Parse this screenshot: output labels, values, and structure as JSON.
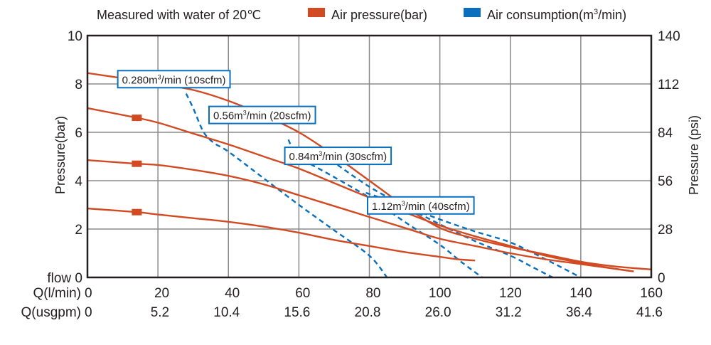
{
  "chart_data": {
    "type": "line",
    "title": "Measured with water of 20℃",
    "ylabel_left": "Pressure(bar)",
    "ylabel_right": "Pressure (psi)",
    "xlabel_rows": [
      {
        "label": "Q(l/min)",
        "ticks": [
          "0",
          "20",
          "40",
          "60",
          "80",
          "100",
          "120",
          "140",
          "160"
        ]
      },
      {
        "label": "Q(usgpm)",
        "ticks": [
          "0",
          "5.2",
          "10.4",
          "15.6",
          "20.8",
          "26.0",
          "31.2",
          "36.4",
          "41.6"
        ]
      }
    ],
    "xlim": [
      0,
      160
    ],
    "ylim": [
      0,
      10
    ],
    "y_left_ticks": [
      "flow 0",
      "2",
      "4",
      "6",
      "8",
      "10"
    ],
    "y_left_values": [
      0,
      2,
      4,
      6,
      8,
      10
    ],
    "y_right_ticks": [
      "0",
      "28",
      "56",
      "84",
      "112",
      "140"
    ],
    "x_grid_values": [
      20,
      40,
      60,
      80,
      100,
      120,
      140
    ],
    "grid": true,
    "legend": {
      "placement": "top",
      "entries": [
        {
          "name": "Air pressure(bar)",
          "color": "#d24a22"
        },
        {
          "name": "Air consumption(m³/min)",
          "color": "#0a6fbd"
        }
      ]
    },
    "colors": {
      "pressure": "#d24a22",
      "consumption": "#0a6fbd",
      "axis": "#231f20",
      "grid": "#8a8a8a"
    },
    "pressure_series": [
      {
        "name": "Air pressure curve 1",
        "marker_x": 14,
        "points": [
          [
            0,
            8.45
          ],
          [
            14,
            8.15
          ],
          [
            20,
            8.0
          ],
          [
            30,
            7.75
          ],
          [
            40,
            7.3
          ],
          [
            50,
            6.7
          ],
          [
            60,
            6.0
          ],
          [
            70,
            5.05
          ],
          [
            80,
            4.0
          ],
          [
            90,
            2.95
          ],
          [
            100,
            2.05
          ],
          [
            110,
            1.6
          ],
          [
            120,
            1.25
          ],
          [
            130,
            0.95
          ],
          [
            140,
            0.65
          ],
          [
            150,
            0.45
          ],
          [
            160,
            0.33
          ]
        ]
      },
      {
        "name": "Air pressure curve 2",
        "marker_x": 14,
        "points": [
          [
            0,
            7.0
          ],
          [
            14,
            6.6
          ],
          [
            20,
            6.4
          ],
          [
            30,
            5.95
          ],
          [
            40,
            5.5
          ],
          [
            50,
            5.0
          ],
          [
            60,
            4.5
          ],
          [
            70,
            3.9
          ],
          [
            80,
            3.3
          ],
          [
            90,
            2.7
          ],
          [
            100,
            2.15
          ],
          [
            110,
            1.7
          ],
          [
            120,
            1.3
          ],
          [
            130,
            0.9
          ],
          [
            140,
            0.6
          ],
          [
            150,
            0.35
          ],
          [
            155,
            0.25
          ]
        ]
      },
      {
        "name": "Air pressure curve 3",
        "marker_x": 14,
        "points": [
          [
            0,
            4.85
          ],
          [
            14,
            4.7
          ],
          [
            20,
            4.65
          ],
          [
            30,
            4.45
          ],
          [
            40,
            4.2
          ],
          [
            50,
            3.85
          ],
          [
            60,
            3.4
          ],
          [
            70,
            2.95
          ],
          [
            80,
            2.5
          ],
          [
            90,
            2.05
          ],
          [
            100,
            1.6
          ],
          [
            110,
            1.3
          ],
          [
            120,
            1.0
          ],
          [
            130,
            0.75
          ],
          [
            140,
            0.55
          ],
          [
            150,
            0.35
          ],
          [
            155,
            0.25
          ]
        ]
      },
      {
        "name": "Air pressure curve 4",
        "marker_x": 14,
        "points": [
          [
            0,
            2.85
          ],
          [
            14,
            2.7
          ],
          [
            20,
            2.6
          ],
          [
            30,
            2.45
          ],
          [
            40,
            2.3
          ],
          [
            50,
            2.1
          ],
          [
            60,
            1.85
          ],
          [
            70,
            1.55
          ],
          [
            80,
            1.3
          ],
          [
            90,
            1.05
          ],
          [
            100,
            0.85
          ],
          [
            105,
            0.75
          ],
          [
            110,
            0.7
          ]
        ]
      }
    ],
    "consumption_series": [
      {
        "name": "0.280m³/min (10scfm)",
        "label_prefix": "0.280m",
        "label_suffix": "/min (10scfm)",
        "points": [
          [
            28,
            7.6
          ],
          [
            30,
            7.0
          ],
          [
            33,
            6.0
          ],
          [
            36,
            5.55
          ],
          [
            40,
            5.2
          ],
          [
            50,
            4.1
          ],
          [
            60,
            3.0
          ],
          [
            70,
            1.95
          ],
          [
            80,
            0.9
          ],
          [
            85,
            0
          ]
        ]
      },
      {
        "name": "0.56m³/min (20scfm)",
        "label_prefix": "0.56m",
        "label_suffix": "/min (20scfm)",
        "points": [
          [
            57,
            5.7
          ],
          [
            60,
            5.0
          ],
          [
            70,
            4.15
          ],
          [
            80,
            3.3
          ],
          [
            90,
            2.3
          ],
          [
            100,
            1.35
          ],
          [
            106,
            0.65
          ],
          [
            112,
            0
          ]
        ]
      },
      {
        "name": "0.84m³/min (30scfm)",
        "label_prefix": "0.84m",
        "label_suffix": "/min (30scfm)",
        "points": [
          [
            67,
            5.05
          ],
          [
            70,
            4.75
          ],
          [
            80,
            3.75
          ],
          [
            90,
            2.95
          ],
          [
            100,
            2.2
          ],
          [
            110,
            1.5
          ],
          [
            120,
            0.9
          ],
          [
            126,
            0.45
          ],
          [
            132,
            0
          ]
        ]
      },
      {
        "name": "1.12m³/min (40scfm)",
        "label_prefix": "1.12m",
        "label_suffix": "/min (40scfm)",
        "points": [
          [
            79,
            3.5
          ],
          [
            90,
            2.95
          ],
          [
            100,
            2.4
          ],
          [
            110,
            1.9
          ],
          [
            120,
            1.45
          ],
          [
            130,
            0.75
          ],
          [
            140,
            0
          ]
        ]
      }
    ],
    "annotations": [
      {
        "series": 0,
        "prefix": "0.280m",
        "sup": "3",
        "suffix": "/min (10scfm)"
      },
      {
        "series": 1,
        "prefix": "0.56m",
        "sup": "3",
        "suffix": "/min (20scfm)"
      },
      {
        "series": 2,
        "prefix": "0.84m",
        "sup": "3",
        "suffix": "/min (30scfm)"
      },
      {
        "series": 3,
        "prefix": "1.12m",
        "sup": "3",
        "suffix": "/min (40scfm)"
      }
    ]
  }
}
